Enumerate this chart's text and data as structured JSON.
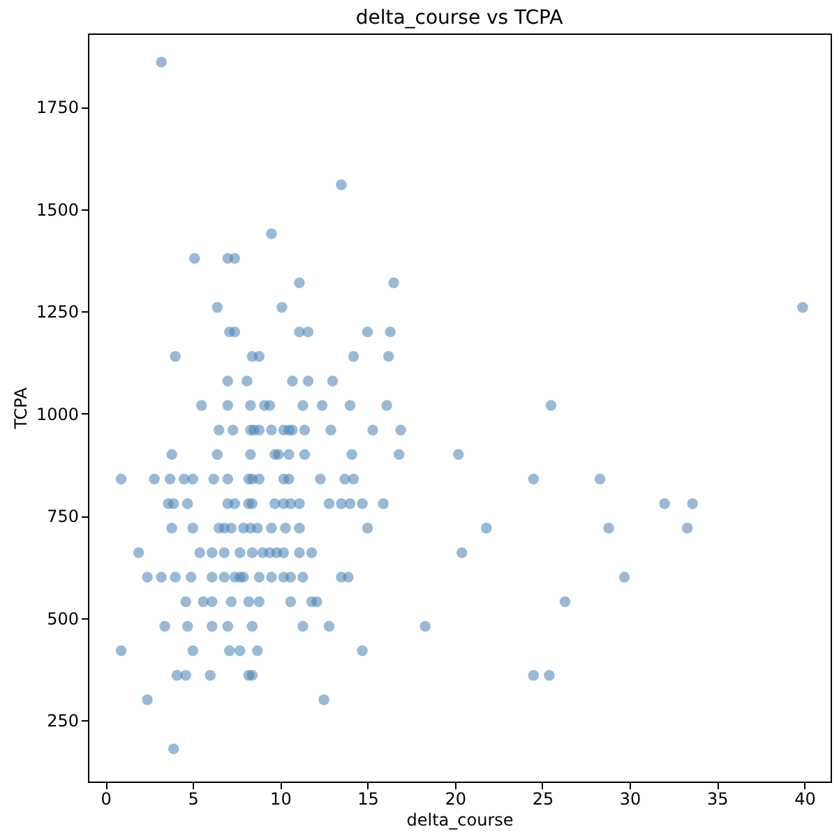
{
  "chart_data": {
    "type": "scatter",
    "title": "delta_course vs TCPA",
    "xlabel": "delta_course",
    "ylabel": "TCPA",
    "xlim": [
      -1.0,
      41.5
    ],
    "ylim": [
      100,
      1930
    ],
    "xticks": [
      0,
      5,
      10,
      15,
      20,
      25,
      30,
      35,
      40
    ],
    "yticks": [
      250,
      500,
      750,
      1000,
      1250,
      1500,
      1750
    ],
    "grid": false,
    "marker": "circle",
    "series": [
      {
        "color": "#4682b4",
        "x": [
          3.2,
          13.5,
          9.5,
          5.1,
          7.0,
          7.4,
          11.1,
          16.5,
          6.4,
          10.1,
          39.9,
          7.1,
          7.4,
          11.1,
          11.6,
          15.0,
          16.3,
          4.0,
          8.4,
          8.8,
          14.2,
          16.2,
          7.0,
          8.1,
          10.7,
          11.6,
          13.0,
          5.5,
          7.0,
          8.3,
          9.1,
          9.4,
          11.3,
          12.4,
          14.0,
          16.1,
          25.5,
          6.5,
          7.3,
          8.3,
          8.5,
          8.8,
          9.5,
          10.2,
          10.5,
          10.7,
          11.4,
          12.9,
          15.3,
          16.9,
          3.8,
          6.4,
          8.3,
          9.7,
          9.9,
          10.5,
          11.4,
          14.1,
          16.8,
          20.2,
          0.9,
          2.8,
          3.7,
          4.5,
          5.0,
          6.2,
          7.0,
          8.2,
          8.4,
          8.8,
          10.2,
          10.5,
          12.3,
          13.7,
          14.2,
          24.5,
          28.3,
          3.6,
          3.9,
          4.7,
          7.0,
          7.4,
          8.2,
          8.4,
          9.7,
          10.2,
          10.6,
          11.1,
          12.8,
          13.5,
          14.0,
          14.7,
          15.9,
          32.0,
          33.6,
          3.8,
          5.0,
          6.5,
          6.8,
          7.2,
          7.9,
          8.3,
          8.7,
          9.5,
          10.3,
          11.1,
          15.0,
          21.8,
          28.8,
          33.3,
          1.9,
          5.4,
          6.1,
          6.8,
          7.7,
          8.4,
          9.0,
          9.4,
          9.8,
          10.2,
          11.1,
          11.8,
          20.4,
          2.4,
          3.2,
          4.0,
          4.9,
          6.1,
          6.8,
          7.4,
          7.7,
          7.9,
          8.8,
          9.5,
          10.2,
          10.6,
          11.3,
          13.5,
          13.9,
          29.7,
          4.6,
          5.6,
          6.1,
          7.2,
          8.2,
          8.8,
          10.6,
          11.8,
          12.1,
          26.3,
          3.4,
          4.7,
          6.1,
          7.0,
          8.4,
          11.3,
          12.8,
          18.3,
          0.9,
          5.0,
          7.1,
          7.7,
          8.7,
          14.7,
          4.1,
          4.6,
          6.0,
          8.2,
          8.4,
          24.5,
          25.4,
          2.4,
          12.5,
          3.9
        ],
        "values": [
          1860,
          1560,
          1440,
          1380,
          1380,
          1380,
          1320,
          1320,
          1260,
          1260,
          1260,
          1200,
          1200,
          1200,
          1200,
          1200,
          1200,
          1140,
          1140,
          1140,
          1140,
          1140,
          1080,
          1080,
          1080,
          1080,
          1080,
          1020,
          1020,
          1020,
          1020,
          1020,
          1020,
          1020,
          1020,
          1020,
          1020,
          960,
          960,
          960,
          960,
          960,
          960,
          960,
          960,
          960,
          960,
          960,
          960,
          960,
          900,
          900,
          900,
          900,
          900,
          900,
          900,
          900,
          900,
          900,
          840,
          840,
          840,
          840,
          840,
          840,
          840,
          840,
          840,
          840,
          840,
          840,
          840,
          840,
          840,
          840,
          840,
          780,
          780,
          780,
          780,
          780,
          780,
          780,
          780,
          780,
          780,
          780,
          780,
          780,
          780,
          780,
          780,
          780,
          780,
          720,
          720,
          720,
          720,
          720,
          720,
          720,
          720,
          720,
          720,
          720,
          720,
          720,
          720,
          720,
          660,
          660,
          660,
          660,
          660,
          660,
          660,
          660,
          660,
          660,
          660,
          660,
          660,
          600,
          600,
          600,
          600,
          600,
          600,
          600,
          600,
          600,
          600,
          600,
          600,
          600,
          600,
          600,
          600,
          600,
          540,
          540,
          540,
          540,
          540,
          540,
          540,
          540,
          540,
          540,
          480,
          480,
          480,
          480,
          480,
          480,
          480,
          480,
          420,
          420,
          420,
          420,
          420,
          420,
          360,
          360,
          360,
          360,
          360,
          360,
          360,
          300,
          300,
          180
        ]
      }
    ]
  }
}
